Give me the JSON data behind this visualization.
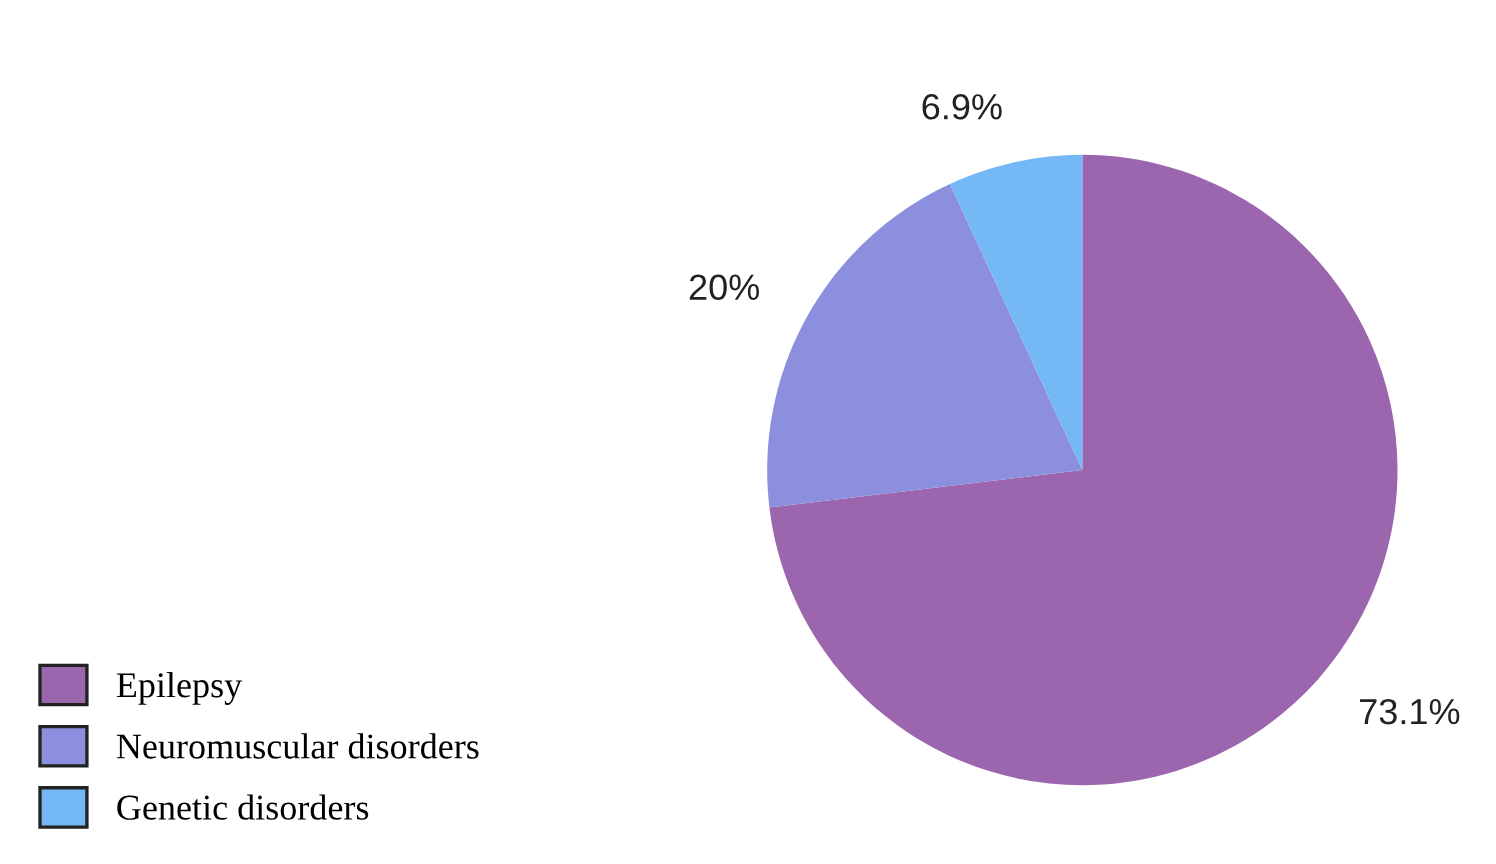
{
  "chart_data": {
    "type": "pie",
    "categories": [
      "Epilepsy",
      "Neuromuscular disorders",
      "Genetic disorders"
    ],
    "values": [
      73.1,
      20,
      6.9
    ],
    "value_labels": [
      "73.1%",
      "20%",
      "6.9%"
    ],
    "colors": [
      "#9b66ae",
      "#8b8fdd",
      "#74b8f5"
    ],
    "legend": "bottom left"
  }
}
